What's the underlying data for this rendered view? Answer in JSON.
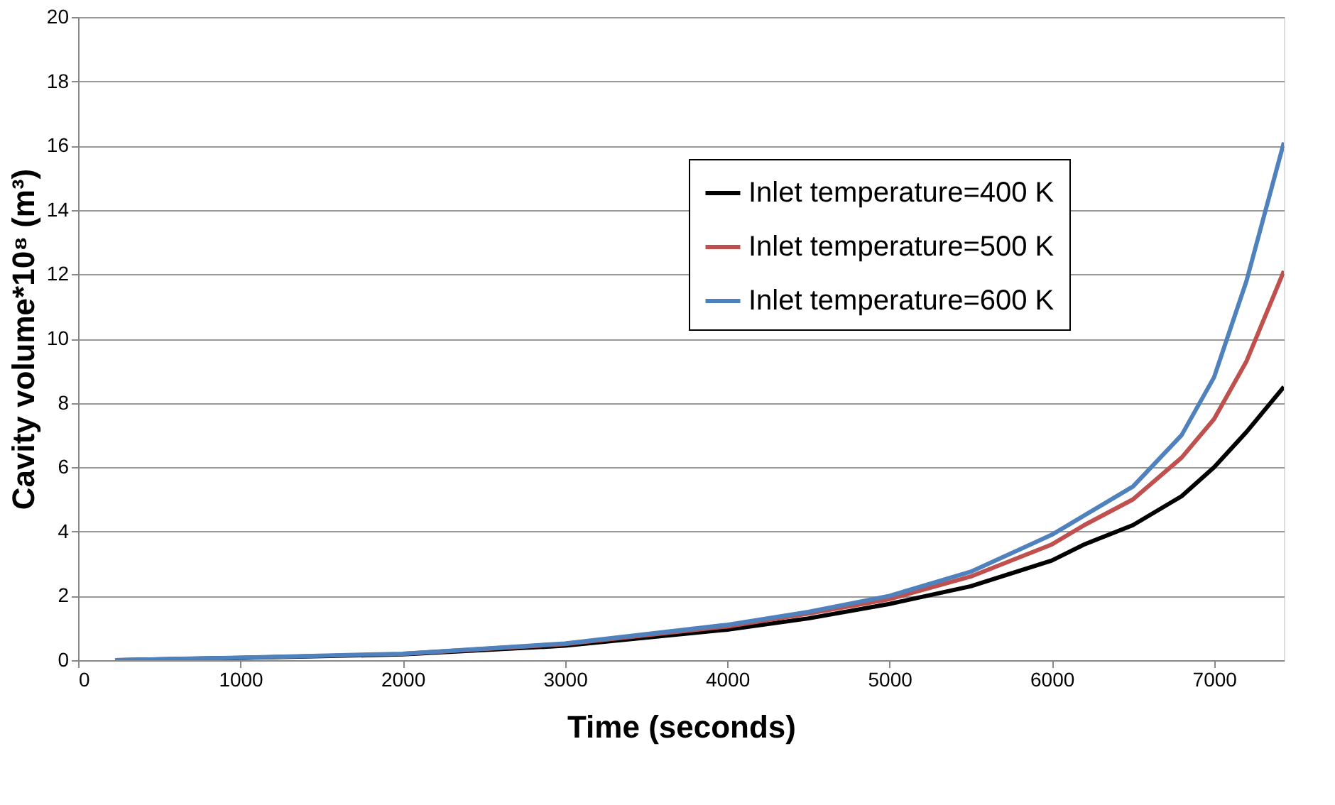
{
  "chart_data": {
    "type": "line",
    "xlabel": "Time (seconds)",
    "ylabel": "Cavity volume*10⁸ (m³)",
    "xlim": [
      0,
      7430
    ],
    "xticks": [
      0,
      1000,
      2000,
      3000,
      4000,
      5000,
      6000,
      7000
    ],
    "ylim": [
      0,
      20
    ],
    "yticks": [
      0,
      2,
      4,
      6,
      8,
      10,
      12,
      14,
      16,
      18,
      20
    ],
    "grid": "y",
    "legend": "right",
    "marker": "none",
    "line_style": "solid",
    "x": [
      230,
      1000,
      2000,
      3000,
      4000,
      4500,
      5000,
      5500,
      6000,
      6200,
      6500,
      6800,
      7000,
      7200,
      7430
    ],
    "series": [
      {
        "name": "Inlet temperature=400 K",
        "color": "#000000",
        "values": [
          0,
          0.07,
          0.18,
          0.45,
          0.95,
          1.3,
          1.75,
          2.3,
          3.1,
          3.6,
          4.2,
          5.1,
          6.0,
          7.1,
          8.5
        ]
      },
      {
        "name": "Inlet temperature=500 K",
        "color": "#c0504d",
        "values": [
          null,
          null,
          0.2,
          0.5,
          1.05,
          1.45,
          1.9,
          2.6,
          3.6,
          4.2,
          5.0,
          6.3,
          7.5,
          9.3,
          12.1
        ]
      },
      {
        "name": "Inlet temperature=600 K",
        "color": "#4f81bd",
        "values": [
          0,
          0.08,
          0.2,
          0.52,
          1.1,
          1.5,
          2.0,
          2.75,
          3.9,
          4.5,
          5.4,
          7.0,
          8.8,
          11.8,
          16.1
        ]
      }
    ]
  }
}
